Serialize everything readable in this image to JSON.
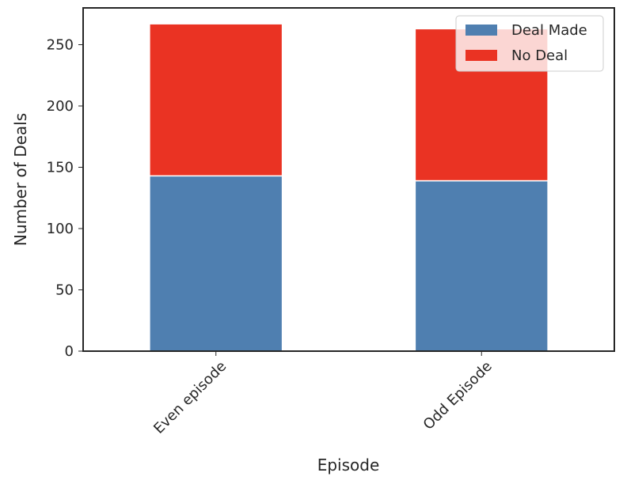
{
  "chart_data": {
    "type": "bar",
    "stacked": true,
    "categories": [
      "Even episode",
      "Odd Episode"
    ],
    "series": [
      {
        "name": "Deal Made",
        "values": [
          143,
          139
        ],
        "color": "#4f7fb0"
      },
      {
        "name": "No Deal",
        "values": [
          124,
          124
        ],
        "color": "#ea3323"
      }
    ],
    "title": "",
    "xlabel": "Episode",
    "ylabel": "Number of Deals",
    "ylim": [
      0,
      280
    ],
    "yticks": [
      0,
      50,
      100,
      150,
      200,
      250
    ],
    "grid": false,
    "legend": "top-right",
    "xtick_rotation": -45
  }
}
